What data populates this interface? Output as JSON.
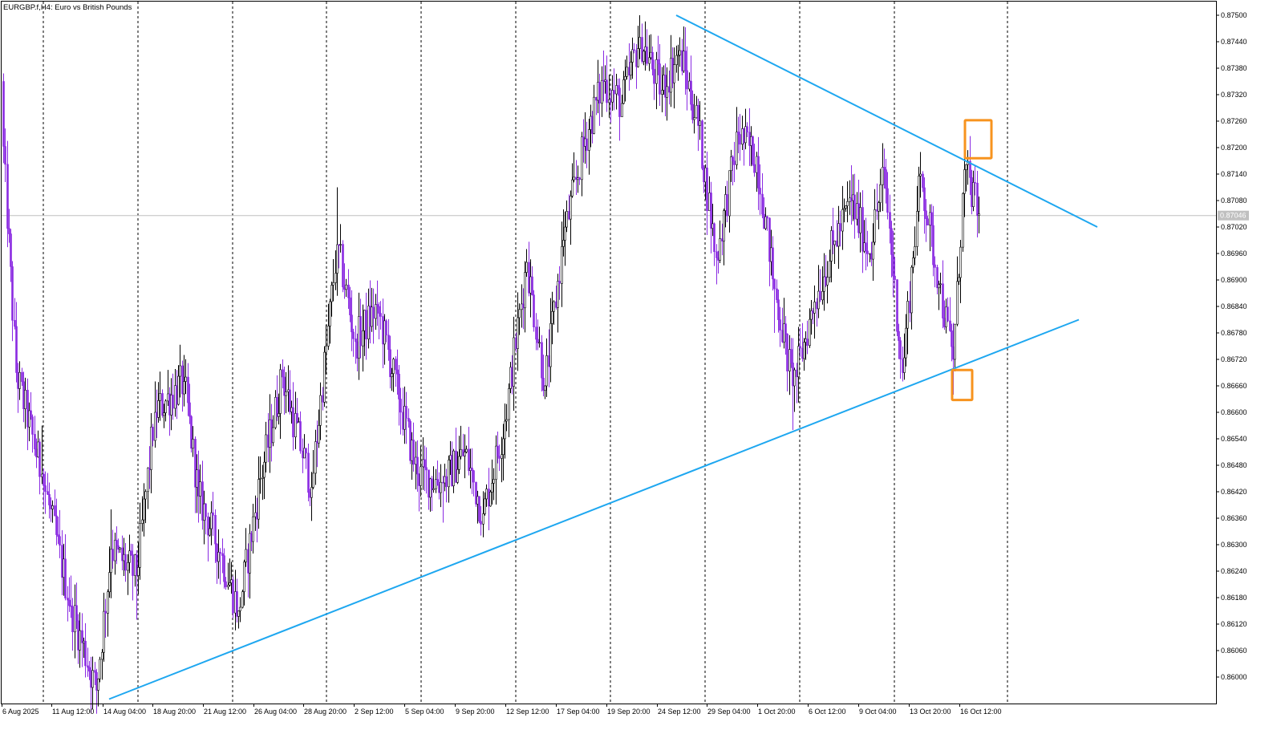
{
  "chart_data": {
    "type": "candlestick",
    "title": "EURGBP.f,H4:  Euro vs British Pounds",
    "current_price": 0.87046,
    "current_price_label": "0.87046",
    "ylim": [
      0.8594,
      0.8753
    ],
    "y_ticks": [
      "0.87500",
      "0.87440",
      "0.87380",
      "0.87320",
      "0.87260",
      "0.87200",
      "0.87140",
      "0.87080",
      "0.87020",
      "0.86960",
      "0.86900",
      "0.86840",
      "0.86780",
      "0.86720",
      "0.86660",
      "0.86600",
      "0.86540",
      "0.86480",
      "0.86420",
      "0.86360",
      "0.86300",
      "0.86240",
      "0.86180",
      "0.86120",
      "0.86060",
      "0.86000"
    ],
    "x_labels": [
      "6 Aug 2025",
      "11 Aug 12:00",
      "14 Aug 04:00",
      "18 Aug 20:00",
      "21 Aug 12:00",
      "26 Aug 04:00",
      "28 Aug 20:00",
      "2 Sep 12:00",
      "5 Sep 04:00",
      "9 Sep 20:00",
      "12 Sep 12:00",
      "17 Sep 04:00",
      "19 Sep 20:00",
      "24 Sep 12:00",
      "29 Sep 04:00",
      "1 Oct 20:00",
      "6 Oct 12:00",
      "9 Oct 04:00",
      "13 Oct 20:00",
      "16 Oct 12:00"
    ],
    "grid": "vertical-dashed",
    "anchors": [
      {
        "o": 0.8735,
        "h": 0.8743,
        "l": 0.8718,
        "c": 0.8726,
        "t": 0.8738,
        "n": "I"
      },
      {
        "c": 0.8669,
        "t": 0.8685,
        "n": "D"
      },
      {
        "c": 0.8646,
        "t": 0.8657,
        "n": "D"
      },
      {
        "c": 0.8616,
        "t": 0.8623,
        "n": "D"
      },
      {
        "c": 0.8597,
        "t": 0.8594,
        "n": "D"
      },
      {
        "c": 0.8629,
        "t": 0.8638,
        "n": "U"
      },
      {
        "c": 0.8623,
        "t": 0.8613,
        "n": "D"
      },
      {
        "c": 0.866,
        "t": 0.8667,
        "n": "U"
      },
      {
        "c": 0.8667,
        "t": 0.8673,
        "n": "U"
      },
      {
        "c": 0.8641,
        "t": 0.8635,
        "n": "D"
      },
      {
        "c": 0.8628,
        "t": 0.8621,
        "n": "D"
      },
      {
        "c": 0.8615,
        "t": 0.8611,
        "n": "D"
      },
      {
        "c": 0.8645,
        "t": 0.865,
        "n": "U"
      },
      {
        "c": 0.8668,
        "t": 0.8672,
        "n": "U"
      },
      {
        "c": 0.8643,
        "t": 0.8637,
        "n": "D"
      },
      {
        "c": 0.8698,
        "t": 0.8711,
        "n": "U"
      },
      {
        "c": 0.8676,
        "t": 0.8671,
        "n": "D"
      },
      {
        "c": 0.8684,
        "t": 0.8685,
        "n": "U"
      },
      {
        "c": 0.8663,
        "t": 0.8657,
        "n": "D"
      },
      {
        "c": 0.8646,
        "t": 0.8642,
        "n": "D"
      },
      {
        "c": 0.8644,
        "t": 0.8635,
        "n": "D"
      },
      {
        "c": 0.8651,
        "t": 0.8655,
        "n": "U"
      },
      {
        "c": 0.8637,
        "t": 0.8633,
        "n": "D"
      },
      {
        "c": 0.8658,
        "t": 0.8662,
        "n": "U"
      },
      {
        "c": 0.8694,
        "t": 0.8697,
        "n": "U"
      },
      {
        "c": 0.8666,
        "t": 0.8663,
        "n": "D"
      },
      {
        "c": 0.8699,
        "t": 0.8706,
        "n": "U"
      },
      {
        "c": 0.8722,
        "t": 0.8728,
        "n": "U"
      },
      {
        "c": 0.8735,
        "t": 0.8742,
        "n": "U"
      },
      {
        "c": 0.873,
        "t": 0.8732,
        "n": "U"
      },
      {
        "c": 0.8745,
        "t": 0.875,
        "n": "U"
      },
      {
        "c": 0.8733,
        "t": 0.8728,
        "n": "D"
      },
      {
        "c": 0.8742,
        "t": 0.8745,
        "n": "U"
      },
      {
        "c": 0.8725,
        "t": 0.872,
        "n": "D"
      },
      {
        "c": 0.8695,
        "t": 0.8689,
        "n": "D"
      },
      {
        "c": 0.8723,
        "t": 0.8727,
        "n": "U"
      },
      {
        "c": 0.8718,
        "t": 0.871,
        "n": "D"
      },
      {
        "c": 0.8688,
        "t": 0.8678,
        "n": "D"
      },
      {
        "c": 0.8666,
        "t": 0.8656,
        "n": "D"
      },
      {
        "c": 0.8685,
        "t": 0.8688,
        "n": "U"
      },
      {
        "c": 0.8698,
        "t": 0.8702,
        "n": "U"
      },
      {
        "c": 0.8708,
        "t": 0.8716,
        "n": "U"
      },
      {
        "c": 0.8696,
        "t": 0.8694,
        "n": "D"
      },
      {
        "c": 0.8715,
        "t": 0.8718,
        "n": "U"
      },
      {
        "c": 0.8669,
        "t": 0.8667,
        "n": "D"
      },
      {
        "c": 0.8714,
        "t": 0.8719,
        "n": "U"
      },
      {
        "c": 0.8689,
        "t": 0.8685,
        "n": "D"
      },
      {
        "c": 0.8672,
        "t": 0.8664,
        "n": "D"
      },
      {
        "c": 0.8715,
        "t": 0.8724,
        "n": "U"
      },
      {
        "c": 0.8705,
        "t": 0.8703,
        "n": "D"
      }
    ],
    "trendlines": [
      {
        "name": "lower-trendline",
        "from": [
          136,
          0.8595
        ],
        "to": [
          1345,
          0.8681
        ],
        "color": "#1ea7f0"
      },
      {
        "name": "upper-trendline",
        "from": [
          843,
          0.875
        ],
        "to": [
          1368,
          0.8702
        ],
        "color": "#1ea7f0"
      }
    ],
    "highlights": [
      {
        "name": "upper-touch-box",
        "x": [
          1203,
          1236
        ],
        "y": [
          0.87262,
          0.87176
        ],
        "color": "#f7931e"
      },
      {
        "name": "lower-touch-box",
        "x": [
          1187,
          1212
        ],
        "y": [
          0.86696,
          0.86628
        ],
        "color": "#f7931e"
      }
    ],
    "colors": {
      "bull": "#000000",
      "bear": "#8a2be2",
      "trendline": "#1ea7f0",
      "highlight": "#f7931e",
      "price_line": "#c0c0c0",
      "price_tag": "#c0c0c0"
    }
  }
}
